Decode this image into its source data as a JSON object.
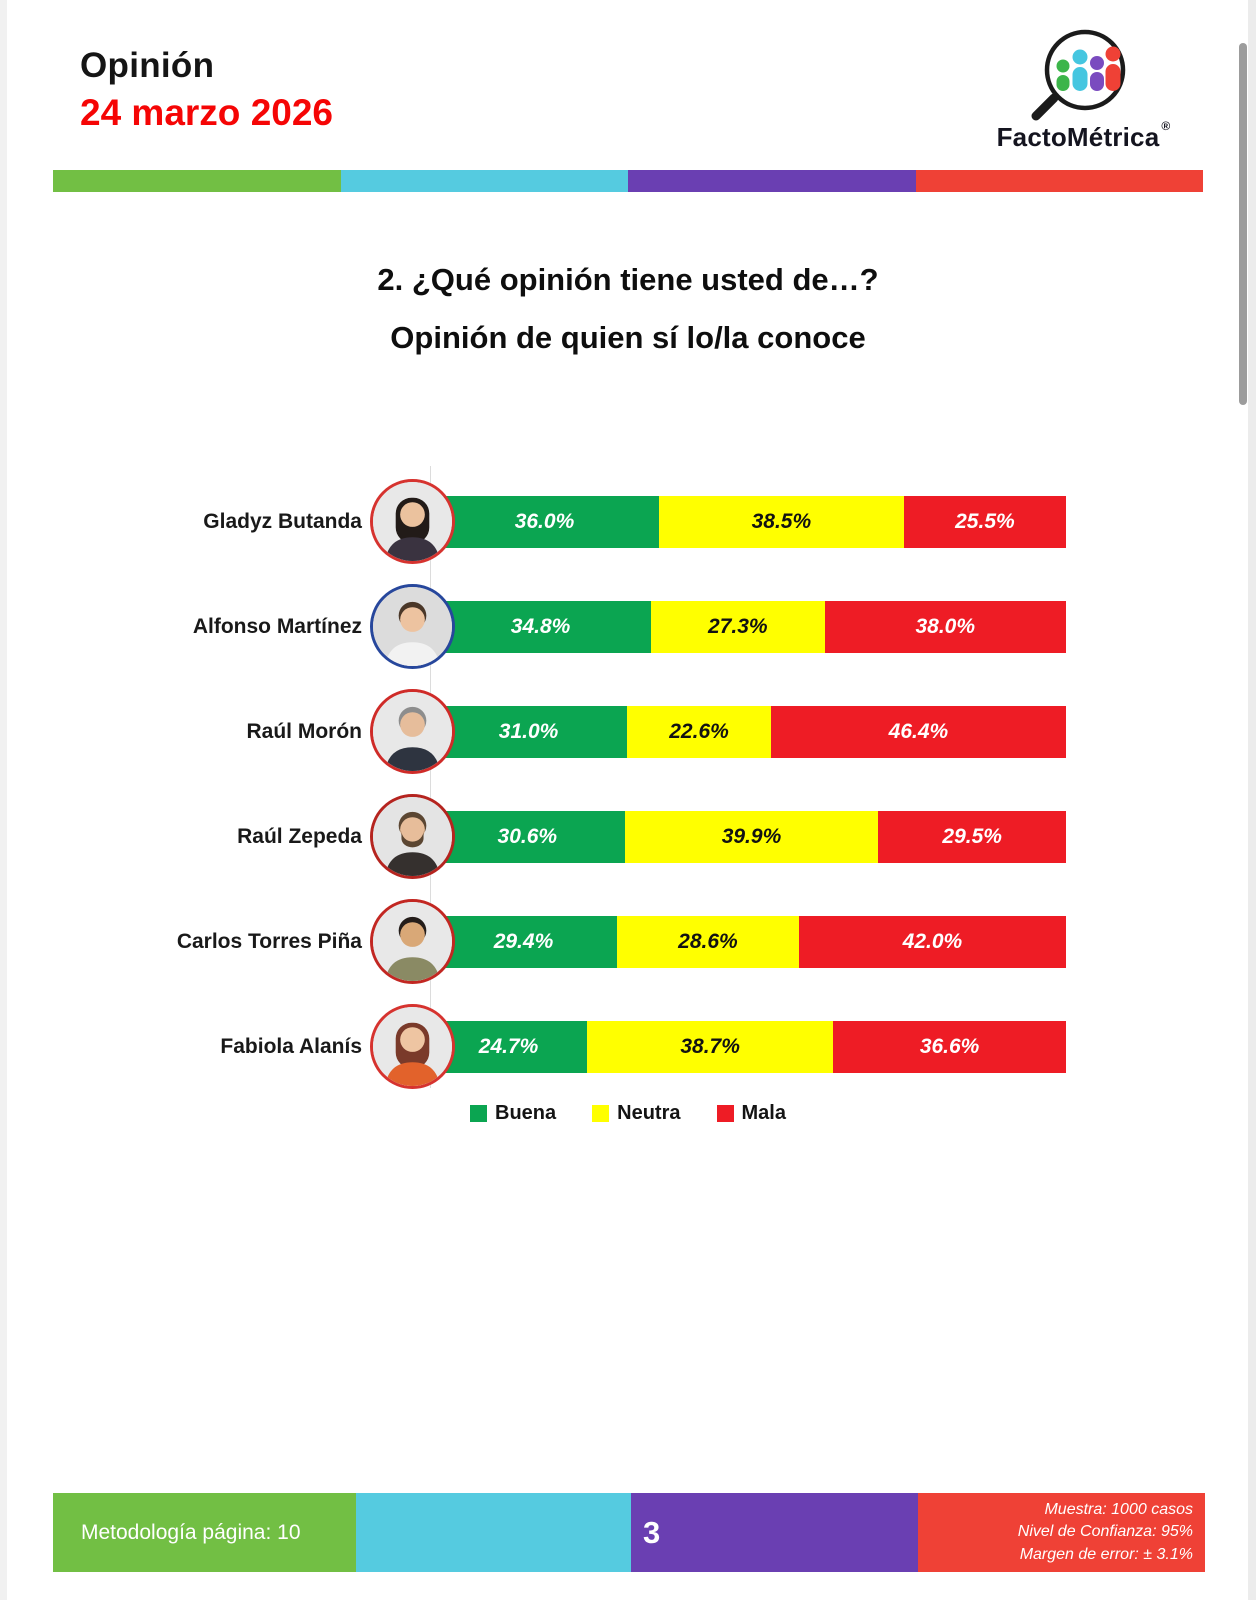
{
  "header": {
    "title": "Opinión",
    "date": "24 marzo 2026"
  },
  "brand": {
    "name": "FactoMétrica",
    "registered_mark": "®"
  },
  "theme": {
    "date_color": "#f50505",
    "stripe_colors": [
      "#72bf44",
      "#55cbe0",
      "#6a3fb2",
      "#ef4136"
    ],
    "logo_colors": [
      "#3cb54a",
      "#45c6e0",
      "#7a4bbf",
      "#ef4136"
    ],
    "series_text_colors": [
      "#ffffff",
      "#121212",
      "#ffffff"
    ],
    "axis_line_color": "#dcdcdc",
    "scrollbar_thumb_color": "#9c9c9c"
  },
  "chart_data": {
    "type": "bar",
    "orientation": "horizontal",
    "stacked": true,
    "title": "2. ¿Qué opinión tiene usted de…?",
    "subtitle": "Opinión de quien sí lo/la conoce",
    "categories": [
      "Gladyz Butanda",
      "Alfonso Martínez",
      "Raúl Morón",
      "Raúl Zepeda",
      "Carlos Torres Piña",
      "Fabiola Alanís"
    ],
    "series": [
      {
        "name": "Buena",
        "color": "#0ba551",
        "values": [
          36.0,
          34.8,
          31.0,
          30.6,
          29.4,
          24.7
        ]
      },
      {
        "name": "Neutra",
        "color": "#ffff00",
        "values": [
          38.5,
          27.3,
          22.6,
          39.9,
          28.6,
          38.7
        ]
      },
      {
        "name": "Mala",
        "color": "#ee1c25",
        "values": [
          25.5,
          38.0,
          46.4,
          29.5,
          42.0,
          36.6
        ]
      }
    ],
    "value_suffix": "%",
    "value_decimals": 1,
    "xlim": [
      0,
      100
    ],
    "grid": false,
    "legend_position": "bottom"
  },
  "persons": [
    {
      "ring": "#d6332f",
      "hair": "#221b18",
      "skin": "#ebc29e",
      "clothes": "#3a3340",
      "bg": "#e8e8e8",
      "long_hair": true,
      "beard": false
    },
    {
      "ring": "#27479c",
      "hair": "#4a3728",
      "skin": "#edc3a0",
      "clothes": "#f2f2f2",
      "bg": "#dcdcdc",
      "long_hair": false,
      "beard": false
    },
    {
      "ring": "#cf2b28",
      "hair": "#8d8d8d",
      "skin": "#e6bd9b",
      "clothes": "#2e3440",
      "bg": "#e8e8e8",
      "long_hair": false,
      "beard": false
    },
    {
      "ring": "#b5241f",
      "hair": "#5b4632",
      "skin": "#e7bd9a",
      "clothes": "#35302e",
      "bg": "#e4e4e4",
      "long_hair": false,
      "beard": true
    },
    {
      "ring": "#c22722",
      "hair": "#241d1a",
      "skin": "#d9a877",
      "clothes": "#8a8a64",
      "bg": "#e8e8e8",
      "long_hair": false,
      "beard": false
    },
    {
      "ring": "#d6332f",
      "hair": "#7a3a2a",
      "skin": "#eec5a2",
      "clothes": "#e2622b",
      "bg": "#e8e8e8",
      "long_hair": true,
      "beard": false
    }
  ],
  "footer": {
    "methodology": "Metodología página: 10",
    "page_number": "3",
    "stats": [
      "Muestra:  1000 casos",
      "Nivel de Confianza: 95%",
      "Margen de error: ± 3.1%"
    ]
  }
}
